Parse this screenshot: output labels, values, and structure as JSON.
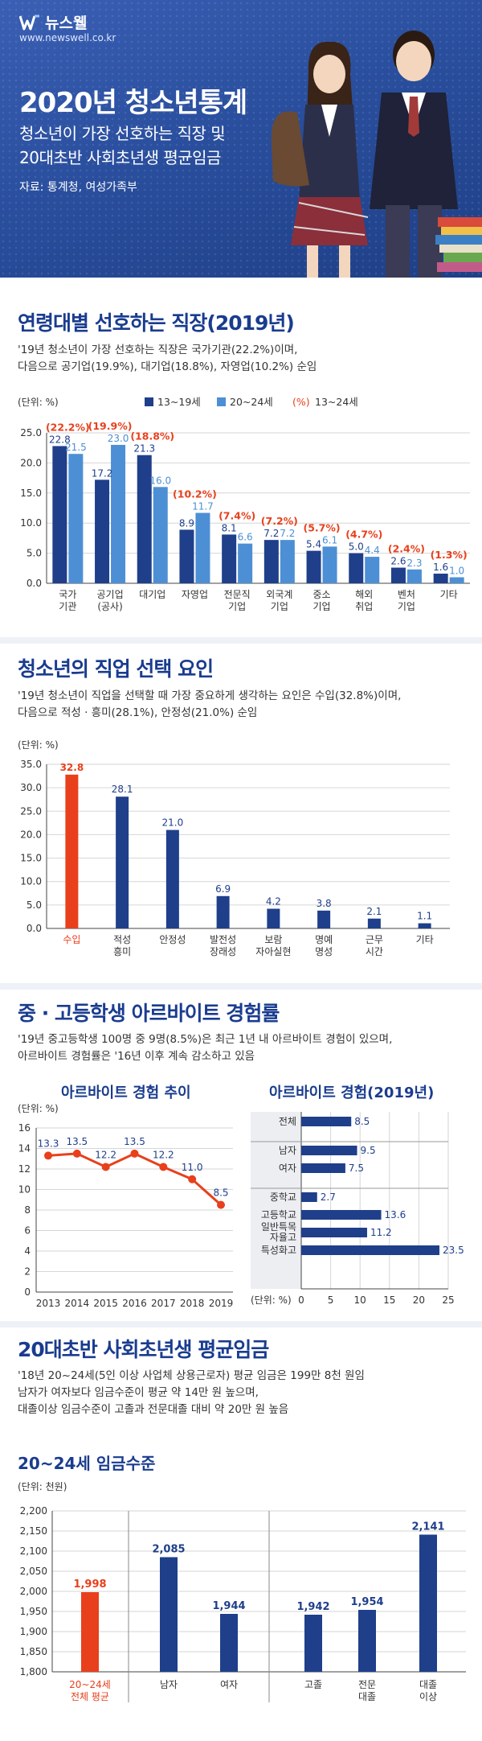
{
  "header": {
    "brand": "뉴스웰",
    "url": "www.newswell.co.kr",
    "title": "2020년 청소년통계",
    "subtitle_lines": [
      "청소년이 가장 선호하는 직장 및",
      "20대초반 사회초년생 평균임금"
    ],
    "source": "자료: 통계청, 여성가족부"
  },
  "colors": {
    "navy": "#1f3f8a",
    "light_blue": "#4d8fd4",
    "red": "#e8401c",
    "title_blue": "#1a3c8f",
    "header_bg": "#2a4f9e"
  },
  "section1": {
    "title": "연령대별 선호하는 직장(2019년)",
    "desc_lines": [
      "'19년 청소년이 가장 선호하는 직장은 국가기관(22.2%)이며,",
      "다음으로 공기업(19.9%), 대기업(18.8%), 자영업(10.2%) 순임"
    ],
    "unit": "(단위: %)"
  },
  "section2": {
    "title": "청소년의 직업 선택 요인",
    "desc_lines": [
      "'19년 청소년이 직업을 선택할 때 가장 중요하게 생각하는 요인은 수입(32.8%)이며,",
      "다음으로 적성 · 흥미(28.1%), 안정성(21.0%) 순임"
    ],
    "unit": "(단위: %)"
  },
  "section3": {
    "title": "중 · 고등학생 아르바이트 경험률",
    "desc_lines": [
      "'19년 중고등학생 100명 중 9명(8.5%)은 최근 1년 내 아르바이트 경험이 있으며,",
      "아르바이트 경험률은 '16년 이후 계속 감소하고 있음"
    ],
    "unit": "(단위: %)"
  },
  "section4": {
    "title": "20대초반 사회초년생 평균임금",
    "desc_lines": [
      "'18년 20~24세(5인 이상 사업체 상용근로자) 평균 임금은 199만 8천 원임",
      "남자가 여자보다 임금수준이 평균 약 14만 원 높으며,",
      "대졸이상 임금수준이 고졸과 전문대졸 대비 약 20만 원 높음"
    ],
    "unit": "(단위: 천원)"
  },
  "chart_data": [
    {
      "id": "preferred-workplace",
      "type": "bar",
      "categories": [
        [
          "국가",
          "기관"
        ],
        [
          "공기업",
          "(공사)"
        ],
        [
          "대기업"
        ],
        [
          "자영업"
        ],
        [
          "전문직",
          "기업"
        ],
        [
          "외국계",
          "기업"
        ],
        [
          "중소",
          "기업"
        ],
        [
          "해외",
          "취업"
        ],
        [
          "벤처",
          "기업"
        ],
        [
          "기타"
        ]
      ],
      "series": [
        {
          "name": "13~19세",
          "values": [
            22.8,
            17.2,
            21.3,
            8.9,
            8.1,
            7.2,
            5.4,
            5.0,
            2.6,
            1.6
          ],
          "color": "#1f3f8a"
        },
        {
          "name": "20~24세",
          "values": [
            21.5,
            23.0,
            16.0,
            11.7,
            6.6,
            7.2,
            6.1,
            4.4,
            2.3,
            1.0
          ],
          "color": "#4d8fd4"
        }
      ],
      "totals": {
        "name": "13~24세",
        "marker": "(%)",
        "labels": [
          "(22.2%)",
          "(19.9%)",
          "(18.8%)",
          "(10.2%)",
          "(7.4%)",
          "(7.2%)",
          "(5.7%)",
          "(4.7%)",
          "(2.4%)",
          "(1.3%)"
        ],
        "color": "#e8401c"
      },
      "yticks": [
        "0.0",
        "5.0",
        "10.0",
        "15.0",
        "20.0",
        "25.0"
      ],
      "ylim": [
        0,
        25
      ],
      "legend": "top"
    },
    {
      "id": "job-choice-factors",
      "type": "bar",
      "categories": [
        [
          "수입"
        ],
        [
          "적성",
          "흥미"
        ],
        [
          "안정성"
        ],
        [
          "발전성",
          "장래성"
        ],
        [
          "보람",
          "자아실현"
        ],
        [
          "명예",
          "명성"
        ],
        [
          "근무",
          "시간"
        ],
        [
          "기타"
        ]
      ],
      "values": [
        32.8,
        28.1,
        21.0,
        6.9,
        4.2,
        3.8,
        2.1,
        1.1
      ],
      "highlight_index": 0,
      "yticks": [
        "0.0",
        "5.0",
        "10.0",
        "15.0",
        "20.0",
        "25.0",
        "30.0",
        "35.0"
      ],
      "ylim": [
        0,
        35
      ]
    },
    {
      "id": "parttime-trend",
      "type": "line",
      "title": "아르바이트 경험 추이",
      "x": [
        "2013",
        "2014",
        "2015",
        "2016",
        "2017",
        "2018",
        "2019"
      ],
      "values": [
        13.3,
        13.5,
        12.2,
        13.5,
        12.2,
        11.0,
        8.5
      ],
      "value_labels": [
        "13.3",
        "13.5",
        "12.2",
        "13.5",
        "12.2",
        "11.0",
        "8.5"
      ],
      "yticks": [
        "0",
        "2",
        "4",
        "6",
        "8",
        "10",
        "12",
        "14",
        "16"
      ],
      "ylim": [
        0,
        16
      ]
    },
    {
      "id": "parttime-2019",
      "type": "bar",
      "orientation": "horizontal",
      "title": "아르바이트 경험(2019년)",
      "categories": [
        [
          "전체"
        ],
        [
          "남자"
        ],
        [
          "여자"
        ],
        [
          "중학교"
        ],
        [
          "고등학교"
        ],
        [
          "일반특목",
          "자율고"
        ],
        [
          "특성화고"
        ]
      ],
      "values": [
        8.5,
        9.5,
        7.5,
        2.7,
        13.6,
        11.2,
        23.5
      ],
      "groups": [
        [
          0
        ],
        [
          1,
          2
        ],
        [
          3,
          4,
          5,
          6
        ]
      ],
      "xticks": [
        "0",
        "5",
        "10",
        "15",
        "20",
        "25"
      ],
      "xlim": [
        0,
        25
      ],
      "unit": "(단위: %)"
    },
    {
      "id": "avg-wage",
      "type": "bar",
      "title": "20~24세 임금수준",
      "categories": [
        [
          "20~24세",
          "전체 평균"
        ],
        [
          "남자"
        ],
        [
          "여자"
        ],
        [
          "고졸"
        ],
        [
          "전문",
          "대졸"
        ],
        [
          "대졸",
          "이상"
        ]
      ],
      "values": [
        1998,
        2085,
        1944,
        1942,
        1954,
        2141
      ],
      "value_labels": [
        "1,998",
        "2,085",
        "1,944",
        "1,942",
        "1,954",
        "2,141"
      ],
      "highlight_index": 0,
      "groups": [
        [
          0
        ],
        [
          1,
          2
        ],
        [
          3,
          4,
          5
        ]
      ],
      "yticks": [
        "1,800",
        "1,850",
        "1,900",
        "1,950",
        "2,000",
        "2,050",
        "2,100",
        "2,150",
        "2,200"
      ],
      "ylim": [
        1800,
        2200
      ]
    }
  ]
}
